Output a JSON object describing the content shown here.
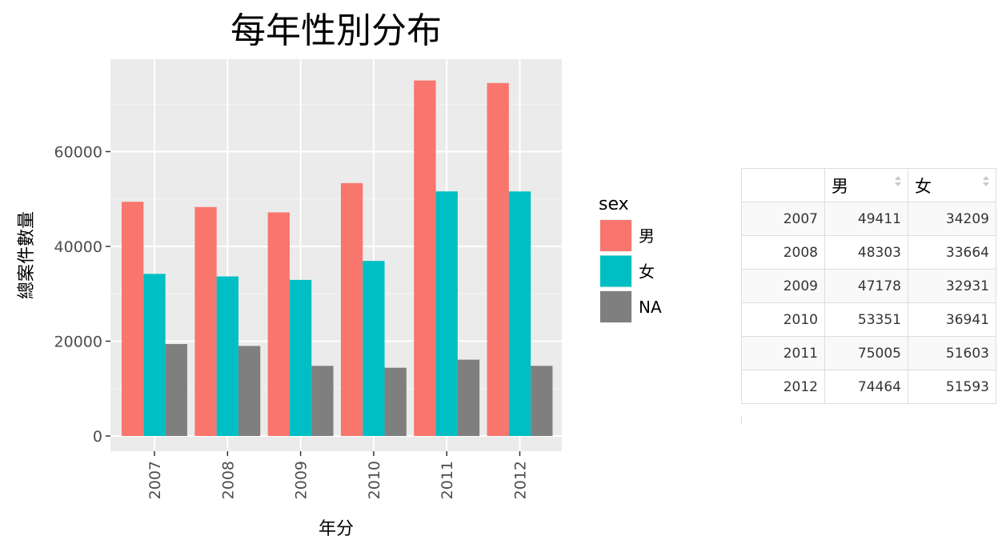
{
  "chart_data": {
    "type": "bar",
    "title": "每年性別分布",
    "xlabel": "年分",
    "ylabel": "總案件數量",
    "categories": [
      "2007",
      "2008",
      "2009",
      "2010",
      "2011",
      "2012"
    ],
    "series": [
      {
        "name": "男",
        "color": "#F8766D",
        "values": [
          49411,
          48303,
          47178,
          53351,
          75005,
          74464
        ]
      },
      {
        "name": "女",
        "color": "#00BFC4",
        "values": [
          34209,
          33664,
          32931,
          36941,
          51603,
          51593
        ]
      },
      {
        "name": "NA",
        "color": "#7F7F7F",
        "values": [
          19400,
          19000,
          14800,
          14400,
          16100,
          14800
        ]
      }
    ],
    "ylim": [
      0,
      78000
    ],
    "yticks": [
      0,
      20000,
      40000,
      60000
    ],
    "ytick_labels": [
      "0",
      "20000",
      "40000",
      "60000"
    ],
    "legend": {
      "title": "sex",
      "placement": "right"
    },
    "grid": true,
    "panel_background": "#EBEBEB"
  },
  "table": {
    "headers": [
      "",
      "男",
      "女"
    ],
    "rows": [
      {
        "year": "2007",
        "male": "49411",
        "female": "34209"
      },
      {
        "year": "2008",
        "male": "48303",
        "female": "33664"
      },
      {
        "year": "2009",
        "male": "47178",
        "female": "32931"
      },
      {
        "year": "2010",
        "male": "53351",
        "female": "36941"
      },
      {
        "year": "2011",
        "male": "75005",
        "female": "51603"
      },
      {
        "year": "2012",
        "male": "74464",
        "female": "51593"
      }
    ]
  }
}
